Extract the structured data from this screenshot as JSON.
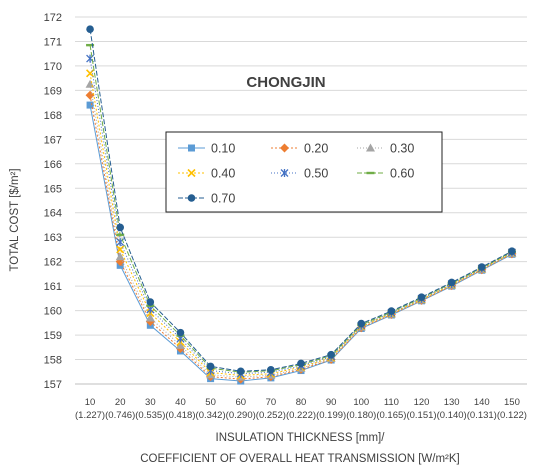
{
  "chart_data": {
    "type": "line",
    "title": "CHONGJIN",
    "ylabel": "TOTAL COST [$/m²]",
    "xlabel_line1": "INSULATION THICKNESS [mm]/",
    "xlabel_line2": "COEFFICIENT OF OVERALL HEAT TRANSMISSION  [W/m²K]",
    "ylim": [
      157,
      172
    ],
    "yticks": [
      "157",
      "158",
      "159",
      "160",
      "161",
      "162",
      "163",
      "164",
      "165",
      "166",
      "167",
      "168",
      "169",
      "170",
      "171",
      "172"
    ],
    "categories": [
      "10",
      "20",
      "30",
      "40",
      "50",
      "60",
      "70",
      "80",
      "90",
      "100",
      "110",
      "120",
      "130",
      "140",
      "150"
    ],
    "category_sublabels": [
      "(1.227)",
      "(0.746)",
      "(0.535)",
      "(0.418)",
      "(0.342)",
      "(0.290)",
      "(0.252)",
      "(0.222)",
      "(0.199)",
      "(0.180)",
      "(0.165)",
      "(0.151)",
      "(0.140)",
      "(0.131)",
      "(0.122)"
    ],
    "grid": true,
    "legend_position": "center",
    "series": [
      {
        "name": "0.10",
        "color": "#5B9BD5",
        "marker": "square",
        "dash": "",
        "values": [
          168.4,
          161.85,
          159.4,
          158.35,
          157.22,
          157.12,
          157.25,
          157.55,
          157.98,
          159.27,
          159.82,
          160.4,
          161.0,
          161.65,
          162.3
        ]
      },
      {
        "name": "0.20",
        "color": "#ED7D31",
        "marker": "diamond",
        "dash": "2,2",
        "values": [
          168.8,
          162.0,
          159.55,
          158.45,
          157.3,
          157.2,
          157.3,
          157.6,
          158.0,
          159.3,
          159.84,
          160.42,
          161.02,
          161.67,
          162.32
        ]
      },
      {
        "name": "0.30",
        "color": "#A5A5A5",
        "marker": "triangle",
        "dash": "1,2",
        "values": [
          169.25,
          162.2,
          159.7,
          158.58,
          157.38,
          157.28,
          157.36,
          157.64,
          158.04,
          159.33,
          159.86,
          160.44,
          161.04,
          161.69,
          162.34
        ]
      },
      {
        "name": "0.40",
        "color": "#FFC000",
        "marker": "x",
        "dash": "2,2",
        "values": [
          169.7,
          162.5,
          159.9,
          158.72,
          157.47,
          157.35,
          157.42,
          157.69,
          158.08,
          159.36,
          159.88,
          160.46,
          161.06,
          161.71,
          162.36
        ]
      },
      {
        "name": "0.50",
        "color": "#4472C4",
        "marker": "star",
        "dash": "1,2",
        "values": [
          170.3,
          162.8,
          160.05,
          158.86,
          157.55,
          157.42,
          157.48,
          157.74,
          158.12,
          159.39,
          159.91,
          160.49,
          161.09,
          161.73,
          162.38
        ]
      },
      {
        "name": "0.60",
        "color": "#70AD47",
        "marker": "dash",
        "dash": "5,2",
        "values": [
          170.85,
          163.1,
          160.2,
          158.98,
          157.65,
          157.48,
          157.54,
          157.79,
          158.16,
          159.42,
          159.94,
          160.52,
          161.12,
          161.75,
          162.4
        ]
      },
      {
        "name": "0.70",
        "color": "#255E91",
        "marker": "circle",
        "dash": "5,2",
        "values": [
          171.5,
          163.4,
          160.35,
          159.1,
          157.72,
          157.52,
          157.58,
          157.84,
          158.2,
          159.47,
          159.98,
          160.55,
          161.15,
          161.78,
          162.43
        ]
      }
    ]
  }
}
